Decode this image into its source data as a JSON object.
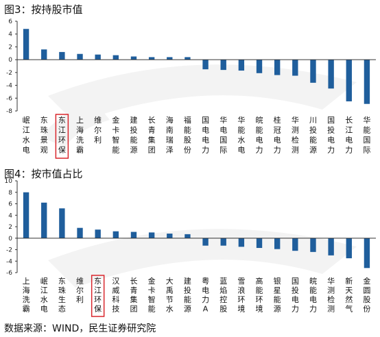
{
  "chart_data": [
    {
      "type": "bar",
      "title": "图3：按持股市值",
      "categories": [
        "岷江水电",
        "东珠景观",
        "东江环保",
        "上海洗霸",
        "维尔利",
        "金卡智能",
        "建投能源",
        "长青集团",
        "海南瑞泽",
        "福能股份",
        "国电电力",
        "华电国际",
        "华能水电",
        "皖能电力",
        "桂冠电力",
        "华测检测",
        "川投能源",
        "国投电力",
        "长江电力",
        "华能国际"
      ],
      "values": [
        4.8,
        1.6,
        1.2,
        0.9,
        0.8,
        0.7,
        0.5,
        0.4,
        0.4,
        0.4,
        -1.5,
        -1.6,
        -1.7,
        -2.1,
        -2.4,
        -2.5,
        -3.6,
        -4.5,
        -6.5,
        -6.9
      ],
      "highlight": "东江环保",
      "yticks": [
        6,
        4,
        2,
        0,
        -2,
        -4,
        -6,
        -8
      ],
      "ylim": [
        -8,
        6
      ],
      "color": "#1f5e9c",
      "highlight_box_color": "#d9262c"
    },
    {
      "type": "bar",
      "title": "图4：按市值占比",
      "categories": [
        "上海洗霸",
        "岷江水电",
        "东珠生态",
        "维尔利",
        "东江环保",
        "汉威科技",
        "长青集团",
        "金卡智能",
        "大禹节水",
        "建投能源",
        "粤电力A",
        "蓝焰控股",
        "雪浪环境",
        "高能环境",
        "银星能源",
        "国投电力",
        "皖能电力",
        "华测检测",
        "新天然气",
        "金圆股份"
      ],
      "values": [
        8.0,
        6.2,
        5.2,
        1.8,
        1.5,
        1.2,
        1.1,
        1.0,
        0.8,
        0.7,
        -1.3,
        -1.3,
        -1.5,
        -1.7,
        -1.9,
        -2.2,
        -2.4,
        -3.0,
        -3.5,
        -5.2
      ],
      "highlight": "东江环保",
      "yticks": [
        10,
        8,
        6,
        4,
        2,
        0,
        -2,
        -4,
        -6
      ],
      "ylim": [
        -6,
        10
      ],
      "color": "#1f5e9c",
      "highlight_box_color": "#d9262c"
    }
  ],
  "source": "数据来源：WIND，民生证券研究院"
}
